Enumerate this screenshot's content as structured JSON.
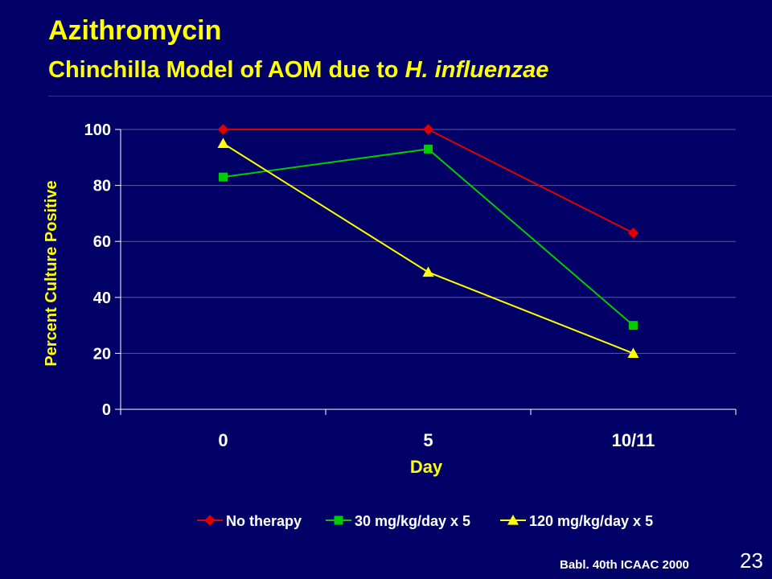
{
  "slide": {
    "title": "Azithromycin",
    "subtitle_main": "Chinchilla Model of AOM due to ",
    "subtitle_italic": "H. influenzae",
    "source": "Babl. 40th ICAAC 2000",
    "page_number": "23",
    "rule_color": "#CC0000",
    "background_color": "#000066",
    "title_color": "#FFFF00"
  },
  "chart_data": {
    "type": "line",
    "categories": [
      "0",
      "5",
      "10/11"
    ],
    "xlabel": "Day",
    "ylabel": "Percent Culture Positive",
    "ylim": [
      0,
      100
    ],
    "yticks": [
      0,
      20,
      40,
      60,
      80,
      100
    ],
    "grid": true,
    "legend_position": "bottom",
    "series": [
      {
        "name": "No therapy",
        "values": [
          100,
          100,
          63
        ],
        "color": "#E00000",
        "marker": "diamond"
      },
      {
        "name": "30 mg/kg/day x 5",
        "values": [
          83,
          93,
          30
        ],
        "color": "#00CC00",
        "marker": "square"
      },
      {
        "name": "120 mg/kg/day x 5",
        "values": [
          95,
          49,
          20
        ],
        "color": "#FFFF00",
        "marker": "triangle"
      }
    ]
  }
}
